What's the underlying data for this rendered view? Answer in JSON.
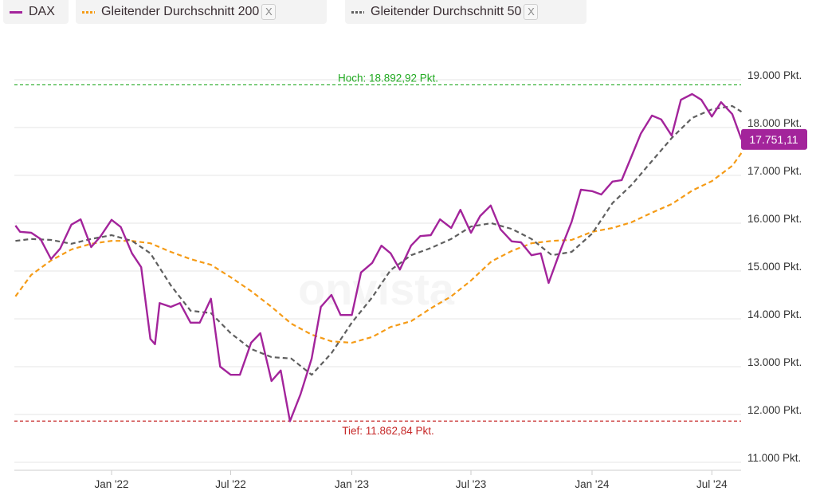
{
  "legend": [
    {
      "label": "DAX",
      "color": "#a3249b",
      "style": "solid",
      "closable": false
    },
    {
      "label": "Gleitender Durchschnitt 200",
      "color": "#f59b16",
      "style": "dashed",
      "closable": true,
      "close_label": "X"
    },
    {
      "label": "Gleitender Durchschnitt 50",
      "color": "#5f5f5f",
      "style": "dashed",
      "closable": true,
      "close_label": "X"
    }
  ],
  "watermark": "onvista",
  "chart_data": {
    "type": "line",
    "y_unit": "Pkt.",
    "ylim": [
      10600,
      19300
    ],
    "y_ticks": [
      {
        "value": 19000,
        "label": "19.000 Pkt."
      },
      {
        "value": 18000,
        "label": "18.000 Pkt."
      },
      {
        "value": 17000,
        "label": "17.000 Pkt."
      },
      {
        "value": 16000,
        "label": "16.000 Pkt."
      },
      {
        "value": 15000,
        "label": "15.000 Pkt."
      },
      {
        "value": 14000,
        "label": "14.000 Pkt."
      },
      {
        "value": 13000,
        "label": "13.000 Pkt."
      },
      {
        "value": 12000,
        "label": "12.000 Pkt."
      },
      {
        "value": 11000,
        "label": "11.000 Pkt."
      }
    ],
    "x_ticks": [
      {
        "date": "2022-01-01",
        "label": "Jan '22"
      },
      {
        "date": "2022-07-01",
        "label": "Jul '22"
      },
      {
        "date": "2023-01-01",
        "label": "Jan '23"
      },
      {
        "date": "2023-07-01",
        "label": "Jul '23"
      },
      {
        "date": "2024-01-01",
        "label": "Jan '24"
      },
      {
        "date": "2024-07-01",
        "label": "Jul '24"
      }
    ],
    "grid": "horizontal",
    "y_axis_position": "right",
    "high": {
      "value": 18892.92,
      "label": "Hoch: 18.892,92 Pkt.",
      "color": "#22aa22"
    },
    "low": {
      "value": 11862.84,
      "label": "Tief: 11.862,84 Pkt.",
      "color": "#c62828"
    },
    "last_value": {
      "value": 17751.11,
      "label": "17.751,11"
    },
    "series": [
      {
        "name": "DAX",
        "color": "#a3249b",
        "dash": false,
        "points": [
          [
            "2021-08-08",
            15950
          ],
          [
            "2021-08-15",
            15820
          ],
          [
            "2021-09-01",
            15800
          ],
          [
            "2021-09-15",
            15670
          ],
          [
            "2021-10-01",
            15250
          ],
          [
            "2021-10-15",
            15470
          ],
          [
            "2021-11-01",
            15970
          ],
          [
            "2021-11-15",
            16080
          ],
          [
            "2021-12-01",
            15500
          ],
          [
            "2021-12-15",
            15720
          ],
          [
            "2022-01-01",
            16070
          ],
          [
            "2022-01-15",
            15920
          ],
          [
            "2022-02-01",
            15370
          ],
          [
            "2022-02-15",
            15080
          ],
          [
            "2022-03-01",
            13580
          ],
          [
            "2022-03-08",
            13470
          ],
          [
            "2022-03-15",
            14330
          ],
          [
            "2022-04-01",
            14250
          ],
          [
            "2022-04-15",
            14330
          ],
          [
            "2022-05-01",
            13920
          ],
          [
            "2022-05-15",
            13920
          ],
          [
            "2022-06-01",
            14420
          ],
          [
            "2022-06-15",
            13000
          ],
          [
            "2022-07-01",
            12830
          ],
          [
            "2022-07-15",
            12830
          ],
          [
            "2022-08-01",
            13500
          ],
          [
            "2022-08-15",
            13700
          ],
          [
            "2022-09-01",
            12700
          ],
          [
            "2022-09-15",
            12920
          ],
          [
            "2022-09-29",
            11860
          ],
          [
            "2022-10-15",
            12420
          ],
          [
            "2022-11-01",
            13170
          ],
          [
            "2022-11-15",
            14250
          ],
          [
            "2022-12-01",
            14500
          ],
          [
            "2022-12-15",
            14080
          ],
          [
            "2023-01-01",
            14080
          ],
          [
            "2023-01-15",
            14970
          ],
          [
            "2023-02-01",
            15170
          ],
          [
            "2023-02-15",
            15530
          ],
          [
            "2023-03-01",
            15370
          ],
          [
            "2023-03-15",
            15030
          ],
          [
            "2023-04-01",
            15530
          ],
          [
            "2023-04-15",
            15730
          ],
          [
            "2023-05-01",
            15750
          ],
          [
            "2023-05-15",
            16080
          ],
          [
            "2023-06-01",
            15900
          ],
          [
            "2023-06-15",
            16280
          ],
          [
            "2023-07-01",
            15800
          ],
          [
            "2023-07-15",
            16150
          ],
          [
            "2023-07-31",
            16370
          ],
          [
            "2023-08-15",
            15870
          ],
          [
            "2023-09-01",
            15620
          ],
          [
            "2023-09-15",
            15600
          ],
          [
            "2023-10-01",
            15330
          ],
          [
            "2023-10-15",
            15370
          ],
          [
            "2023-10-27",
            14750
          ],
          [
            "2023-11-15",
            15470
          ],
          [
            "2023-12-01",
            16030
          ],
          [
            "2023-12-15",
            16700
          ],
          [
            "2024-01-01",
            16670
          ],
          [
            "2024-01-15",
            16600
          ],
          [
            "2024-02-01",
            16870
          ],
          [
            "2024-02-15",
            16900
          ],
          [
            "2024-03-01",
            17400
          ],
          [
            "2024-03-15",
            17870
          ],
          [
            "2024-04-01",
            18250
          ],
          [
            "2024-04-15",
            18170
          ],
          [
            "2024-05-01",
            17830
          ],
          [
            "2024-05-15",
            18580
          ],
          [
            "2024-06-01",
            18700
          ],
          [
            "2024-06-15",
            18580
          ],
          [
            "2024-07-01",
            18230
          ],
          [
            "2024-07-15",
            18530
          ],
          [
            "2024-08-01",
            18280
          ],
          [
            "2024-08-15",
            17751.11
          ]
        ]
      },
      {
        "name": "Gleitender Durchschnitt 200",
        "color": "#f59b16",
        "dash": true,
        "points": [
          [
            "2021-08-08",
            14470
          ],
          [
            "2021-09-01",
            14920
          ],
          [
            "2021-10-01",
            15220
          ],
          [
            "2021-11-01",
            15450
          ],
          [
            "2021-12-01",
            15570
          ],
          [
            "2022-01-01",
            15630
          ],
          [
            "2022-02-01",
            15630
          ],
          [
            "2022-03-01",
            15580
          ],
          [
            "2022-04-01",
            15400
          ],
          [
            "2022-05-01",
            15250
          ],
          [
            "2022-06-01",
            15130
          ],
          [
            "2022-07-01",
            14870
          ],
          [
            "2022-08-01",
            14580
          ],
          [
            "2022-09-01",
            14250
          ],
          [
            "2022-10-01",
            13900
          ],
          [
            "2022-11-01",
            13670
          ],
          [
            "2022-12-01",
            13530
          ],
          [
            "2023-01-01",
            13500
          ],
          [
            "2023-02-01",
            13620
          ],
          [
            "2023-03-01",
            13830
          ],
          [
            "2023-04-01",
            13950
          ],
          [
            "2023-05-01",
            14220
          ],
          [
            "2023-06-01",
            14470
          ],
          [
            "2023-07-01",
            14800
          ],
          [
            "2023-08-01",
            15200
          ],
          [
            "2023-09-01",
            15420
          ],
          [
            "2023-10-01",
            15580
          ],
          [
            "2023-11-01",
            15630
          ],
          [
            "2023-12-01",
            15650
          ],
          [
            "2024-01-01",
            15820
          ],
          [
            "2024-02-01",
            15900
          ],
          [
            "2024-03-01",
            16020
          ],
          [
            "2024-04-01",
            16220
          ],
          [
            "2024-05-01",
            16400
          ],
          [
            "2024-06-01",
            16680
          ],
          [
            "2024-07-01",
            16880
          ],
          [
            "2024-08-01",
            17200
          ],
          [
            "2024-08-15",
            17470
          ]
        ]
      },
      {
        "name": "Gleitender Durchschnitt 50",
        "color": "#5f5f5f",
        "dash": true,
        "points": [
          [
            "2021-08-08",
            15630
          ],
          [
            "2021-09-01",
            15670
          ],
          [
            "2021-10-01",
            15650
          ],
          [
            "2021-11-01",
            15570
          ],
          [
            "2021-12-01",
            15670
          ],
          [
            "2022-01-01",
            15750
          ],
          [
            "2022-02-01",
            15630
          ],
          [
            "2022-03-01",
            15370
          ],
          [
            "2022-04-01",
            14700
          ],
          [
            "2022-05-01",
            14170
          ],
          [
            "2022-06-01",
            14120
          ],
          [
            "2022-07-01",
            13700
          ],
          [
            "2022-08-01",
            13370
          ],
          [
            "2022-09-01",
            13200
          ],
          [
            "2022-10-01",
            13170
          ],
          [
            "2022-11-01",
            12830
          ],
          [
            "2022-12-01",
            13280
          ],
          [
            "2023-01-01",
            13920
          ],
          [
            "2023-02-01",
            14450
          ],
          [
            "2023-03-01",
            15020
          ],
          [
            "2023-04-01",
            15330
          ],
          [
            "2023-05-01",
            15480
          ],
          [
            "2023-06-01",
            15670
          ],
          [
            "2023-07-01",
            15930
          ],
          [
            "2023-08-01",
            16000
          ],
          [
            "2023-09-01",
            15880
          ],
          [
            "2023-10-01",
            15670
          ],
          [
            "2023-11-01",
            15330
          ],
          [
            "2023-12-01",
            15400
          ],
          [
            "2024-01-01",
            15780
          ],
          [
            "2024-02-01",
            16420
          ],
          [
            "2024-03-01",
            16800
          ],
          [
            "2024-04-01",
            17300
          ],
          [
            "2024-05-01",
            17780
          ],
          [
            "2024-06-01",
            18200
          ],
          [
            "2024-07-01",
            18380
          ],
          [
            "2024-08-01",
            18450
          ],
          [
            "2024-08-15",
            18330
          ]
        ]
      }
    ]
  }
}
